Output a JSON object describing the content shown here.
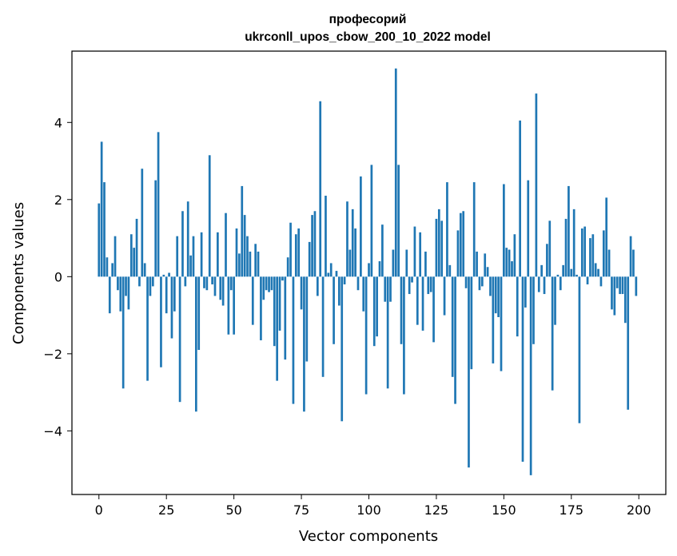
{
  "chart_data": {
    "type": "bar",
    "title_line1": "професорий",
    "title_line2": "ukrconll_upos_cbow_200_10_2022 model",
    "xlabel": "Vector components",
    "ylabel": "Components values",
    "xlim": [
      -10,
      210
    ],
    "ylim": [
      -5.65,
      5.85
    ],
    "xticks": [
      0,
      25,
      50,
      75,
      100,
      125,
      150,
      175,
      200
    ],
    "yticks": [
      -4,
      -2,
      0,
      2,
      4
    ],
    "grid": false,
    "bar_color": "#1f77b4",
    "x": [
      0,
      1,
      2,
      3,
      4,
      5,
      6,
      7,
      8,
      9,
      10,
      11,
      12,
      13,
      14,
      15,
      16,
      17,
      18,
      19,
      20,
      21,
      22,
      23,
      24,
      25,
      26,
      27,
      28,
      29,
      30,
      31,
      32,
      33,
      34,
      35,
      36,
      37,
      38,
      39,
      40,
      41,
      42,
      43,
      44,
      45,
      46,
      47,
      48,
      49,
      50,
      51,
      52,
      53,
      54,
      55,
      56,
      57,
      58,
      59,
      60,
      61,
      62,
      63,
      64,
      65,
      66,
      67,
      68,
      69,
      70,
      71,
      72,
      73,
      74,
      75,
      76,
      77,
      78,
      79,
      80,
      81,
      82,
      83,
      84,
      85,
      86,
      87,
      88,
      89,
      90,
      91,
      92,
      93,
      94,
      95,
      96,
      97,
      98,
      99,
      100,
      101,
      102,
      103,
      104,
      105,
      106,
      107,
      108,
      109,
      110,
      111,
      112,
      113,
      114,
      115,
      116,
      117,
      118,
      119,
      120,
      121,
      122,
      123,
      124,
      125,
      126,
      127,
      128,
      129,
      130,
      131,
      132,
      133,
      134,
      135,
      136,
      137,
      138,
      139,
      140,
      141,
      142,
      143,
      144,
      145,
      146,
      147,
      148,
      149,
      150,
      151,
      152,
      153,
      154,
      155,
      156,
      157,
      158,
      159,
      160,
      161,
      162,
      163,
      164,
      165,
      166,
      167,
      168,
      169,
      170,
      171,
      172,
      173,
      174,
      175,
      176,
      177,
      178,
      179,
      180,
      181,
      182,
      183,
      184,
      185,
      186,
      187,
      188,
      189,
      190,
      191,
      192,
      193,
      194,
      195,
      196,
      197,
      198,
      199
    ],
    "values": [
      1.9,
      3.5,
      2.45,
      0.5,
      -0.95,
      0.35,
      1.05,
      -0.35,
      -0.9,
      -2.9,
      -0.5,
      -0.85,
      1.1,
      0.75,
      1.5,
      -0.25,
      2.8,
      0.35,
      -2.7,
      -0.5,
      -0.25,
      2.5,
      3.75,
      -2.35,
      0.05,
      -0.95,
      0.1,
      -1.6,
      -0.9,
      1.05,
      -3.25,
      1.7,
      -0.25,
      1.95,
      0.55,
      1.05,
      -3.5,
      -1.9,
      1.15,
      -0.3,
      -0.35,
      3.15,
      -0.2,
      -0.5,
      1.15,
      -0.6,
      -0.75,
      1.65,
      -1.5,
      -0.35,
      -1.5,
      1.25,
      0.6,
      2.35,
      1.6,
      1.05,
      0.65,
      -1.25,
      0.85,
      0.65,
      -1.65,
      -0.6,
      -0.35,
      -0.4,
      -0.35,
      -1.8,
      -2.7,
      -1.4,
      -0.1,
      -2.15,
      0.5,
      1.4,
      -3.3,
      1.1,
      1.25,
      -0.85,
      -3.5,
      -2.2,
      0.9,
      1.6,
      1.7,
      -0.5,
      4.55,
      -2.6,
      2.1,
      0.1,
      0.35,
      -1.75,
      0.15,
      -0.75,
      -3.75,
      -0.2,
      1.95,
      0.7,
      1.75,
      1.25,
      -0.35,
      2.6,
      -0.9,
      -3.05,
      0.35,
      2.9,
      -1.8,
      -1.55,
      0.4,
      1.35,
      -0.65,
      -2.9,
      -0.65,
      0.7,
      5.4,
      2.9,
      -1.75,
      -3.05,
      0.7,
      -0.45,
      -0.15,
      1.3,
      -1.25,
      1.15,
      -1.4,
      0.65,
      -0.45,
      -0.4,
      -1.7,
      1.5,
      1.75,
      1.45,
      -1.0,
      2.45,
      0.3,
      -2.6,
      -3.3,
      1.2,
      1.65,
      1.7,
      -0.3,
      -4.95,
      -2.4,
      2.45,
      0.65,
      -0.35,
      -0.25,
      0.6,
      0.25,
      -0.5,
      -2.25,
      -0.95,
      -1.05,
      -2.45,
      2.4,
      0.75,
      0.7,
      0.4,
      1.1,
      -1.55,
      4.05,
      -4.8,
      -0.8,
      2.5,
      -5.15,
      -1.75,
      4.75,
      -0.4,
      0.3,
      -0.45,
      0.85,
      1.45,
      -2.95,
      -1.25,
      0.05,
      -0.35,
      0.3,
      1.5,
      2.35,
      0.2,
      1.75,
      0.05,
      -3.8,
      1.25,
      1.3,
      -0.2,
      1.0,
      1.1,
      0.35,
      0.2,
      -0.25,
      1.2,
      2.05,
      0.7,
      -0.85,
      -1.0,
      -0.3,
      -0.45,
      -0.45,
      -1.2,
      -3.45,
      1.05,
      0.7,
      -0.5
    ]
  }
}
